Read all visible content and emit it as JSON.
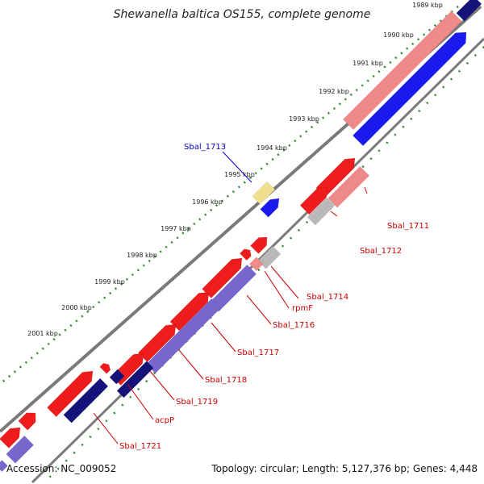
{
  "header": {
    "title": "Shewanella baltica OS155, complete genome"
  },
  "footer": {
    "accession": "Accession: NC_009052",
    "topology": "Topology: circular; Length: 5,127,376 bp; Genes: 4,448"
  },
  "colors": {
    "backbone": "#7a7a7a",
    "tick_dots": "#2a8a2a",
    "label_forward": "#cc0000",
    "label_highlight": "#0000cc",
    "gene_red": "#ee1c1c",
    "gene_pink": "#ef8a8a",
    "gene_blue": "#1a1aee",
    "gene_purple": "#7766cc",
    "gene_navy": "#13137a",
    "gene_gray": "#b9b9b9",
    "gene_yellow": "#efe08f"
  },
  "ruler": {
    "ticks": [
      "1989 kbp",
      "1990 kbp",
      "1991 kbp",
      "1992 kbp",
      "1993 kbp",
      "1994 kbp",
      "1995 kbp",
      "1996 kbp",
      "1997 kbp",
      "1998 kbp",
      "1999 kbp",
      "2000 kbp",
      "2001 kbp"
    ]
  },
  "genes": [
    {
      "label": "Sbal_1711",
      "color": "label_forward"
    },
    {
      "label": "Sbal_1712",
      "color": "label_forward"
    },
    {
      "label": "Sbal_1713",
      "color": "label_highlight"
    },
    {
      "label": "Sbal_1714",
      "color": "label_forward"
    },
    {
      "label": "rpmF",
      "color": "label_forward"
    },
    {
      "label": "Sbal_1716",
      "color": "label_forward"
    },
    {
      "label": "Sbal_1717",
      "color": "label_forward"
    },
    {
      "label": "Sbal_1718",
      "color": "label_forward"
    },
    {
      "label": "Sbal_1719",
      "color": "label_forward"
    },
    {
      "label": "acpP",
      "color": "label_forward"
    },
    {
      "label": "Sbal_1721",
      "color": "label_forward"
    }
  ]
}
